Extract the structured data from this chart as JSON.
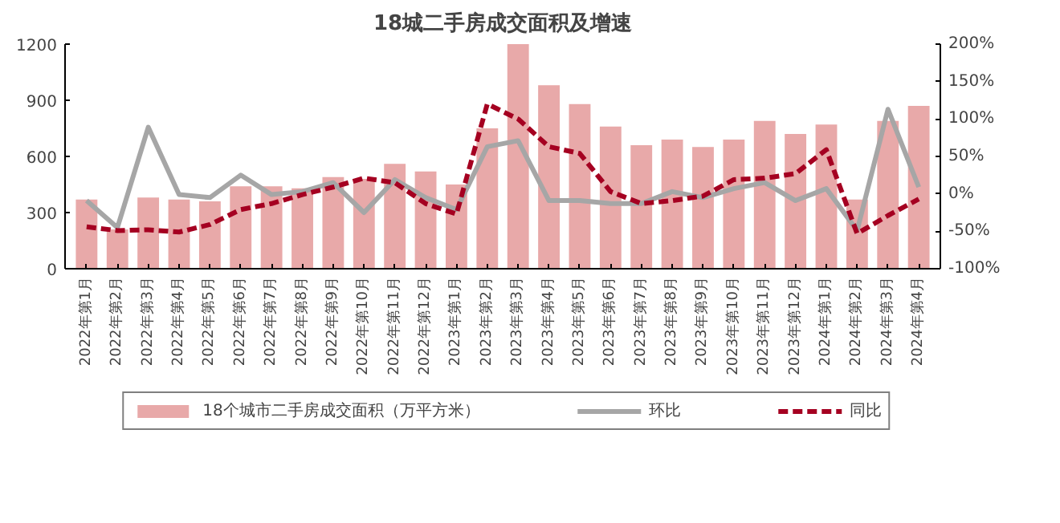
{
  "chart_data": {
    "type": "bar",
    "title": "18城二手房成交面积及增速",
    "categories": [
      "2022年第1月",
      "2022年第2月",
      "2022年第3月",
      "2022年第4月",
      "2022年第5月",
      "2022年第6月",
      "2022年第7月",
      "2022年第8月",
      "2022年第9月",
      "2022年第10月",
      "2022年第11月",
      "2022年第12月",
      "2023年第1月",
      "2023年第2月",
      "2023年第3月",
      "2023年第4月",
      "2023年第5月",
      "2023年第6月",
      "2023年第7月",
      "2023年第8月",
      "2023年第9月",
      "2023年第10月",
      "2023年第11月",
      "2023年第12月",
      "2024年第1月",
      "2024年第2月",
      "2024年第3月",
      "2024年第4月"
    ],
    "series": [
      {
        "name": "18个城市二手房成交面积（万平方米）",
        "color": "#e8a9a9",
        "values": [
          370,
          210,
          380,
          370,
          360,
          440,
          440,
          430,
          490,
          480,
          560,
          520,
          450,
          750,
          1200,
          980,
          880,
          760,
          660,
          690,
          650,
          690,
          790,
          720,
          770,
          370,
          790,
          870
        ]
      },
      {
        "name": "环比",
        "type": "line",
        "axis": "y2",
        "color": "#a6a6a6",
        "line_style": "solid",
        "values": [
          -9,
          -45,
          89,
          -1,
          -5,
          25,
          -1,
          3,
          15,
          -25,
          19,
          -5,
          -21,
          63,
          71,
          -9,
          -9,
          -13,
          -13,
          3,
          -5,
          7,
          15,
          -9,
          7,
          -49,
          113,
          9
        ]
      },
      {
        "name": "同比",
        "type": "line",
        "axis": "y2",
        "color": "#a50021",
        "line_style": "dashed",
        "values": [
          -44,
          -49,
          -48,
          -51,
          -41,
          -21,
          -13,
          -1,
          9,
          21,
          15,
          -13,
          -27,
          120,
          100,
          63,
          54,
          3,
          -13,
          -9,
          -3,
          19,
          21,
          27,
          59,
          -53,
          -29,
          -7
        ]
      }
    ],
    "ylim": [
      0,
      1200
    ],
    "yticks": [
      0,
      300,
      600,
      900,
      1200
    ],
    "y2lim": [
      -100,
      200
    ],
    "y2ticks": [
      {
        "value": -100,
        "label": "-100%"
      },
      {
        "value": -50,
        "label": "-50%"
      },
      {
        "value": 0,
        "label": "0%"
      },
      {
        "value": 50,
        "label": "50%"
      },
      {
        "value": 100,
        "label": "100%"
      },
      {
        "value": 150,
        "label": "150%"
      },
      {
        "value": 200,
        "label": "200%"
      }
    ],
    "grid": false,
    "legend": "bottom"
  }
}
